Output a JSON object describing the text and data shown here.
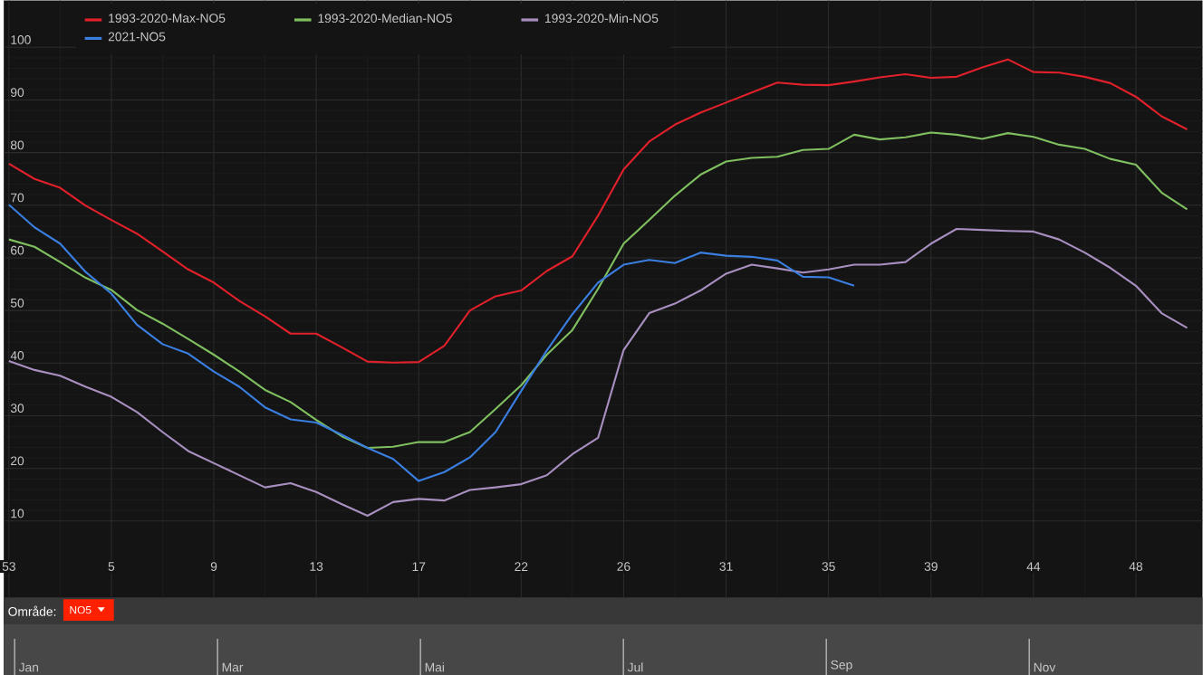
{
  "chart_data": {
    "type": "line",
    "categories": [
      "53",
      null,
      null,
      null,
      "5",
      null,
      null,
      null,
      "9",
      null,
      null,
      null,
      "13",
      null,
      null,
      null,
      "17",
      null,
      null,
      null,
      "22",
      null,
      null,
      null,
      "26",
      null,
      null,
      null,
      "31",
      null,
      null,
      null,
      "35",
      null,
      null,
      null,
      "39",
      null,
      null,
      null,
      "44",
      null,
      null,
      null,
      "48",
      null,
      null
    ],
    "ylim": [
      -4.5,
      108.9
    ],
    "yticks": [
      10,
      20,
      30,
      40,
      50,
      60,
      70,
      80,
      90,
      100
    ],
    "grid": true,
    "legend": "top left",
    "series": [
      {
        "name": "1993-2020-Max-NO5",
        "color": "#e0202a",
        "values": [
          77.9,
          75.0,
          73.3,
          69.9,
          67.2,
          64.6,
          61.2,
          57.8,
          55.3,
          51.8,
          48.9,
          45.6,
          45.6,
          43,
          40.3,
          40.1,
          40.2,
          43.3,
          50,
          52.7,
          53.8,
          57.5,
          60.3,
          68,
          76.8,
          82.1,
          85.3,
          87.6,
          89.5,
          91.4,
          93.3,
          92.9,
          92.8,
          93.5,
          94.3,
          94.9,
          94.2,
          94.4,
          96.2,
          97.7,
          95.3,
          95.2,
          94.4,
          93.2,
          90.6,
          86.9,
          84.4
        ]
      },
      {
        "name": "1993-2020-Median-NO5",
        "color": "#7fbf5f",
        "values": [
          63.5,
          62.1,
          59.2,
          56.2,
          53.9,
          50.1,
          47.5,
          44.6,
          41.6,
          38.4,
          34.9,
          32.6,
          29.2,
          26.1,
          23.9,
          24.1,
          25.0,
          25.0,
          26.9,
          31.3,
          35.8,
          41.6,
          46.3,
          54.1,
          62.7,
          67.2,
          71.8,
          75.8,
          78.3,
          79.0,
          79.2,
          80.5,
          80.7,
          83.4,
          82.5,
          82.9,
          83.8,
          83.4,
          82.6,
          83.7,
          83.0,
          81.5,
          80.7,
          78.8,
          77.7,
          72.4,
          69.2
        ]
      },
      {
        "name": "1993-2020-Min-NO5",
        "color": "#a88fc0",
        "values": [
          40.4,
          38.7,
          37.6,
          35.5,
          33.6,
          30.7,
          26.9,
          23.3,
          21.0,
          18.7,
          16.4,
          17.2,
          15.5,
          13.2,
          11.0,
          13.6,
          14.2,
          13.9,
          15.9,
          16.4,
          17.0,
          18.7,
          22.7,
          25.8,
          42.5,
          49.5,
          51.3,
          53.8,
          57.0,
          58.7,
          58.0,
          57.2,
          57.8,
          58.7,
          58.7,
          59.2,
          62.7,
          65.5,
          65.3,
          65.1,
          65.0,
          63.5,
          61.0,
          58.1,
          54.7,
          49.5,
          46.7
        ]
      },
      {
        "name": "2021-NO5",
        "color": "#3a7ee0",
        "values": [
          70.1,
          65.8,
          62.7,
          57.3,
          53.2,
          47.3,
          43.6,
          41.8,
          38.4,
          35.5,
          31.6,
          29.3,
          28.7,
          26.4,
          23.9,
          21.8,
          17.6,
          19.3,
          22.1,
          26.9,
          34.7,
          42.4,
          49.3,
          55.3,
          58.7,
          59.6,
          59.0,
          61.0,
          60.4,
          60.2,
          59.5,
          56.4,
          56.3,
          54.7,
          null,
          null,
          null,
          null,
          null,
          null,
          null,
          null,
          null,
          null,
          null,
          null,
          null
        ]
      }
    ],
    "annotations": [
      "Område:",
      "NO5",
      "Jan",
      "Mar",
      "Mai",
      "Jul",
      "Sep",
      "Nov"
    ]
  }
}
